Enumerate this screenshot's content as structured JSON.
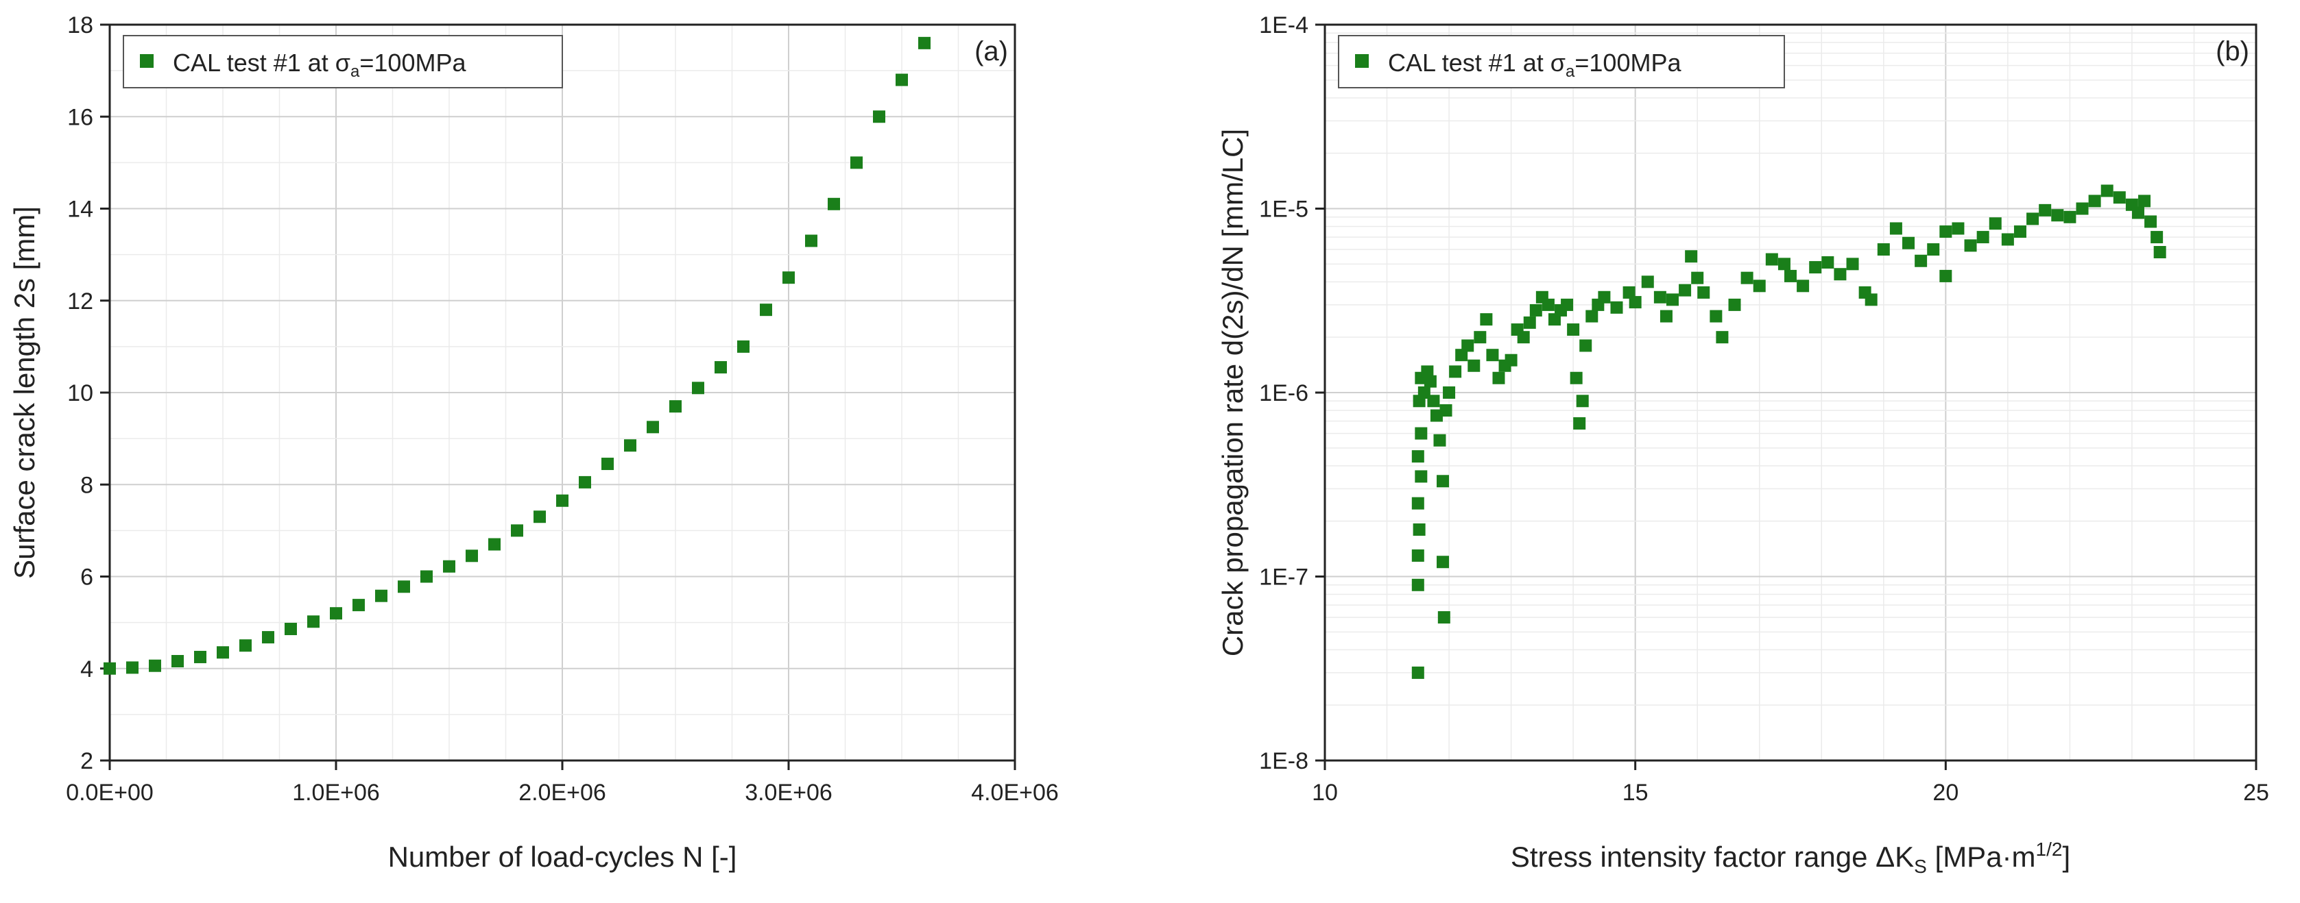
{
  "chart_data": [
    {
      "type": "scatter",
      "panel_label": "(a)",
      "xlabel": "Number of load-cycles N [-]",
      "ylabel": "Surface crack length 2s [mm]",
      "xlim": [
        0,
        4000000
      ],
      "ylim": [
        2,
        18
      ],
      "x_ticks": [
        "0.0E+00",
        "1.0E+06",
        "2.0E+06",
        "3.0E+06",
        "4.0E+06"
      ],
      "y_ticks": [
        "2",
        "4",
        "6",
        "8",
        "10",
        "12",
        "14",
        "16",
        "18"
      ],
      "grid": true,
      "legend_position": "top-left",
      "series": [
        {
          "name": "CAL test #1 at σa=100MPa",
          "legend": {
            "prefix": "CAL test #1 at σ",
            "subscript": "a",
            "suffix": "=100MPa"
          },
          "color": "#1a7f1a",
          "marker": "square",
          "points": [
            [
              0,
              4.0
            ],
            [
              100000,
              4.02
            ],
            [
              200000,
              4.06
            ],
            [
              300000,
              4.16
            ],
            [
              400000,
              4.25
            ],
            [
              500000,
              4.35
            ],
            [
              600000,
              4.5
            ],
            [
              700000,
              4.68
            ],
            [
              800000,
              4.86
            ],
            [
              900000,
              5.02
            ],
            [
              1000000,
              5.2
            ],
            [
              1100000,
              5.38
            ],
            [
              1200000,
              5.58
            ],
            [
              1300000,
              5.78
            ],
            [
              1400000,
              6.0
            ],
            [
              1500000,
              6.22
            ],
            [
              1600000,
              6.45
            ],
            [
              1700000,
              6.7
            ],
            [
              1800000,
              7.0
            ],
            [
              1900000,
              7.3
            ],
            [
              2000000,
              7.65
            ],
            [
              2100000,
              8.05
            ],
            [
              2200000,
              8.45
            ],
            [
              2300000,
              8.85
            ],
            [
              2400000,
              9.25
            ],
            [
              2500000,
              9.7
            ],
            [
              2600000,
              10.1
            ],
            [
              2700000,
              10.55
            ],
            [
              2800000,
              11.0
            ],
            [
              2900000,
              11.8
            ],
            [
              3000000,
              12.5
            ],
            [
              3100000,
              13.3
            ],
            [
              3200000,
              14.1
            ],
            [
              3300000,
              15.0
            ],
            [
              3400000,
              16.0
            ],
            [
              3500000,
              16.8
            ],
            [
              3600000,
              17.6
            ]
          ]
        }
      ]
    },
    {
      "type": "scatter",
      "panel_label": "(b)",
      "xlabel": "Stress intensity factor range ΔKS [MPa·m1/2]",
      "xlabel_parts": {
        "prefix": "Stress intensity factor range ΔK",
        "sub": "S",
        "middle": " [MPa·m",
        "sup": "1/2",
        "suffix": "]"
      },
      "ylabel": "Crack propagation rate d(2s)/dN [mm/LC]",
      "xlim": [
        10,
        25
      ],
      "ylim": [
        1e-08,
        0.0001
      ],
      "y_scale": "log",
      "x_ticks": [
        "10",
        "15",
        "20",
        "25"
      ],
      "y_ticks": [
        "1E-8",
        "1E-7",
        "1E-6",
        "1E-5",
        "1E-4"
      ],
      "grid": true,
      "legend_position": "top-left",
      "series": [
        {
          "name": "CAL test #1 at σa=100MPa",
          "legend": {
            "prefix": "CAL test #1 at σ",
            "subscript": "a",
            "suffix": "=100MPa"
          },
          "color": "#1a7f1a",
          "marker": "square",
          "points": [
            [
              11.5,
              3e-08
            ],
            [
              11.5,
              9e-08
            ],
            [
              11.5,
              1.3e-07
            ],
            [
              11.52,
              1.8e-07
            ],
            [
              11.5,
              2.5e-07
            ],
            [
              11.55,
              3.5e-07
            ],
            [
              11.5,
              4.5e-07
            ],
            [
              11.55,
              6e-07
            ],
            [
              11.52,
              9e-07
            ],
            [
              11.55,
              1.2e-06
            ],
            [
              11.6,
              1e-06
            ],
            [
              11.65,
              1.3e-06
            ],
            [
              11.7,
              1.15e-06
            ],
            [
              11.75,
              9e-07
            ],
            [
              11.8,
              7.5e-07
            ],
            [
              11.85,
              5.5e-07
            ],
            [
              11.9,
              3.3e-07
            ],
            [
              11.9,
              1.2e-07
            ],
            [
              11.92,
              6e-08
            ],
            [
              11.95,
              8e-07
            ],
            [
              12.0,
              1e-06
            ],
            [
              12.1,
              1.3e-06
            ],
            [
              12.2,
              1.6e-06
            ],
            [
              12.3,
              1.8e-06
            ],
            [
              12.4,
              1.4e-06
            ],
            [
              12.5,
              2e-06
            ],
            [
              12.6,
              2.5e-06
            ],
            [
              12.7,
              1.6e-06
            ],
            [
              12.8,
              1.2e-06
            ],
            [
              12.9,
              1.4e-06
            ],
            [
              13.0,
              1.5e-06
            ],
            [
              13.1,
              2.2e-06
            ],
            [
              13.2,
              2e-06
            ],
            [
              13.3,
              2.4e-06
            ],
            [
              13.4,
              2.8e-06
            ],
            [
              13.5,
              3.3e-06
            ],
            [
              13.6,
              3e-06
            ],
            [
              13.7,
              2.5e-06
            ],
            [
              13.8,
              2.8e-06
            ],
            [
              13.9,
              3e-06
            ],
            [
              14.0,
              2.2e-06
            ],
            [
              14.05,
              1.2e-06
            ],
            [
              14.1,
              6.8e-07
            ],
            [
              14.15,
              9e-07
            ],
            [
              14.2,
              1.8e-06
            ],
            [
              14.3,
              2.6e-06
            ],
            [
              14.4,
              3e-06
            ],
            [
              14.5,
              3.3e-06
            ],
            [
              14.7,
              2.9e-06
            ],
            [
              14.9,
              3.5e-06
            ],
            [
              15.0,
              3.1e-06
            ],
            [
              15.2,
              4e-06
            ],
            [
              15.4,
              3.3e-06
            ],
            [
              15.5,
              2.6e-06
            ],
            [
              15.6,
              3.2e-06
            ],
            [
              15.8,
              3.6e-06
            ],
            [
              15.9,
              5.5e-06
            ],
            [
              16.0,
              4.2e-06
            ],
            [
              16.1,
              3.5e-06
            ],
            [
              16.3,
              2.6e-06
            ],
            [
              16.4,
              2e-06
            ],
            [
              16.6,
              3e-06
            ],
            [
              16.8,
              4.2e-06
            ],
            [
              17.0,
              3.8e-06
            ],
            [
              17.2,
              5.3e-06
            ],
            [
              17.4,
              5e-06
            ],
            [
              17.5,
              4.3e-06
            ],
            [
              17.7,
              3.8e-06
            ],
            [
              17.9,
              4.8e-06
            ],
            [
              18.1,
              5.1e-06
            ],
            [
              18.3,
              4.4e-06
            ],
            [
              18.5,
              5e-06
            ],
            [
              18.7,
              3.5e-06
            ],
            [
              18.8,
              3.2e-06
            ],
            [
              19.0,
              6e-06
            ],
            [
              19.2,
              7.8e-06
            ],
            [
              19.4,
              6.5e-06
            ],
            [
              19.6,
              5.2e-06
            ],
            [
              19.8,
              6e-06
            ],
            [
              20.0,
              7.5e-06
            ],
            [
              20.0,
              4.3e-06
            ],
            [
              20.2,
              7.8e-06
            ],
            [
              20.4,
              6.3e-06
            ],
            [
              20.6,
              7e-06
            ],
            [
              20.8,
              8.3e-06
            ],
            [
              21.0,
              6.8e-06
            ],
            [
              21.2,
              7.5e-06
            ],
            [
              21.4,
              8.8e-06
            ],
            [
              21.6,
              9.8e-06
            ],
            [
              21.8,
              9.2e-06
            ],
            [
              22.0,
              9e-06
            ],
            [
              22.2,
              1e-05
            ],
            [
              22.4,
              1.1e-05
            ],
            [
              22.6,
              1.25e-05
            ],
            [
              22.8,
              1.15e-05
            ],
            [
              23.0,
              1.05e-05
            ],
            [
              23.1,
              9.5e-06
            ],
            [
              23.2,
              1.1e-05
            ],
            [
              23.3,
              8.5e-06
            ],
            [
              23.4,
              7e-06
            ],
            [
              23.45,
              5.8e-06
            ]
          ]
        }
      ]
    }
  ]
}
